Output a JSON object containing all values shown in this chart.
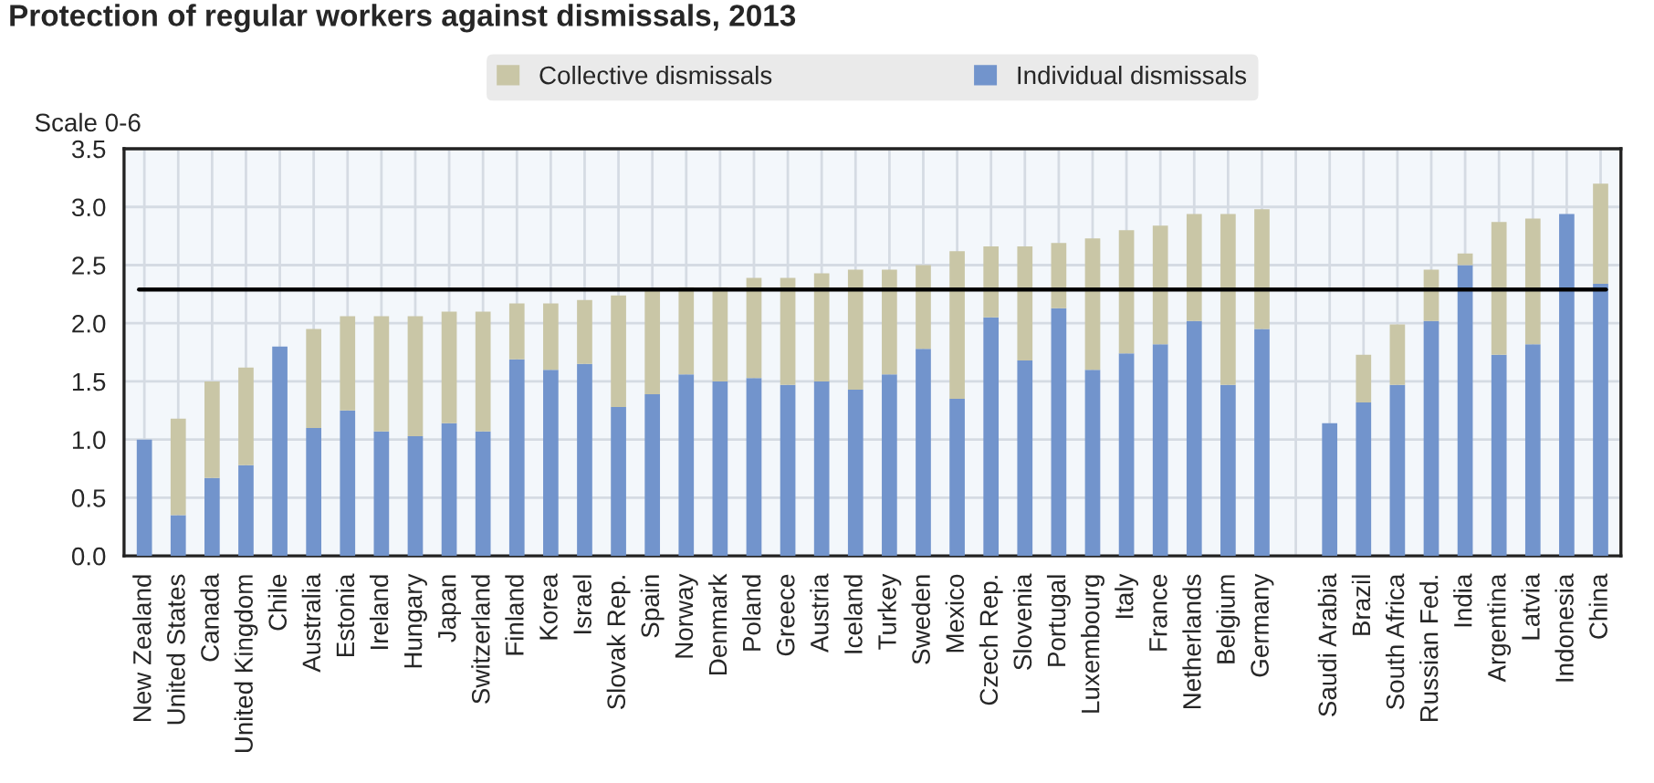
{
  "chart_data": {
    "type": "bar",
    "title": "Protection of regular workers against dismissals, 2013",
    "ylabel": "Scale 0-6",
    "categories": [
      "New Zealand",
      "United States",
      "Canada",
      "United Kingdom",
      "Chile",
      "Australia",
      "Estonia",
      "Ireland",
      "Hungary",
      "Japan",
      "Switzerland",
      "Finland",
      "Korea",
      "Israel",
      "Slovak Rep.",
      "Spain",
      "Norway",
      "Denmark",
      "Poland",
      "Greece",
      "Austria",
      "Iceland",
      "Turkey",
      "Sweden",
      "Mexico",
      "Czech Rep.",
      "Slovenia",
      "Portugal",
      "Luxembourg",
      "Italy",
      "France",
      "Netherlands",
      "Belgium",
      "Germany",
      null,
      "Saudi Arabia",
      "Brazil",
      "South Africa",
      "Russian Fed.",
      "India",
      "Argentina",
      "Latvia",
      "Indonesia",
      "China"
    ],
    "stacked": true,
    "series": [
      {
        "name": "Individual dismissals",
        "color": "#7294cc",
        "values": [
          1.0,
          0.35,
          0.67,
          0.78,
          1.8,
          1.1,
          1.25,
          1.07,
          1.03,
          1.14,
          1.07,
          1.69,
          1.6,
          1.65,
          1.28,
          1.39,
          1.56,
          1.5,
          1.53,
          1.47,
          1.5,
          1.43,
          1.56,
          1.78,
          1.35,
          2.05,
          1.68,
          2.13,
          1.6,
          1.74,
          1.82,
          2.02,
          1.47,
          1.95,
          null,
          1.14,
          1.32,
          1.47,
          2.02,
          2.5,
          1.73,
          1.82,
          2.94,
          2.34
        ]
      },
      {
        "name": "Collective dismissals",
        "color": "#c9c6a6",
        "values": [
          0,
          0.83,
          0.83,
          0.84,
          0,
          0.85,
          0.81,
          0.99,
          1.03,
          0.96,
          1.03,
          0.48,
          0.57,
          0.55,
          0.96,
          0.9,
          0.75,
          0.81,
          0.86,
          0.92,
          0.93,
          1.03,
          0.9,
          0.72,
          1.27,
          0.61,
          0.98,
          0.56,
          1.13,
          1.06,
          1.02,
          0.92,
          1.47,
          1.03,
          null,
          0,
          0.41,
          0.52,
          0.44,
          0.1,
          1.14,
          1.08,
          0,
          0.86
        ]
      }
    ],
    "ylim": [
      0,
      3.5
    ],
    "yticks": [
      {
        "value": 0,
        "label": "0.0"
      },
      {
        "value": 0.5,
        "label": "0.5"
      },
      {
        "value": 1,
        "label": "1.0"
      },
      {
        "value": 1.5,
        "label": "1.5"
      },
      {
        "value": 2,
        "label": "2.0"
      },
      {
        "value": 2.5,
        "label": "2.5"
      },
      {
        "value": 3,
        "label": "3.0"
      },
      {
        "value": 3.5,
        "label": "3.5"
      }
    ],
    "ref_lines": [
      {
        "axis": "y",
        "value": 2.29,
        "color": "#000000"
      }
    ],
    "grid": true,
    "legend": "top"
  }
}
